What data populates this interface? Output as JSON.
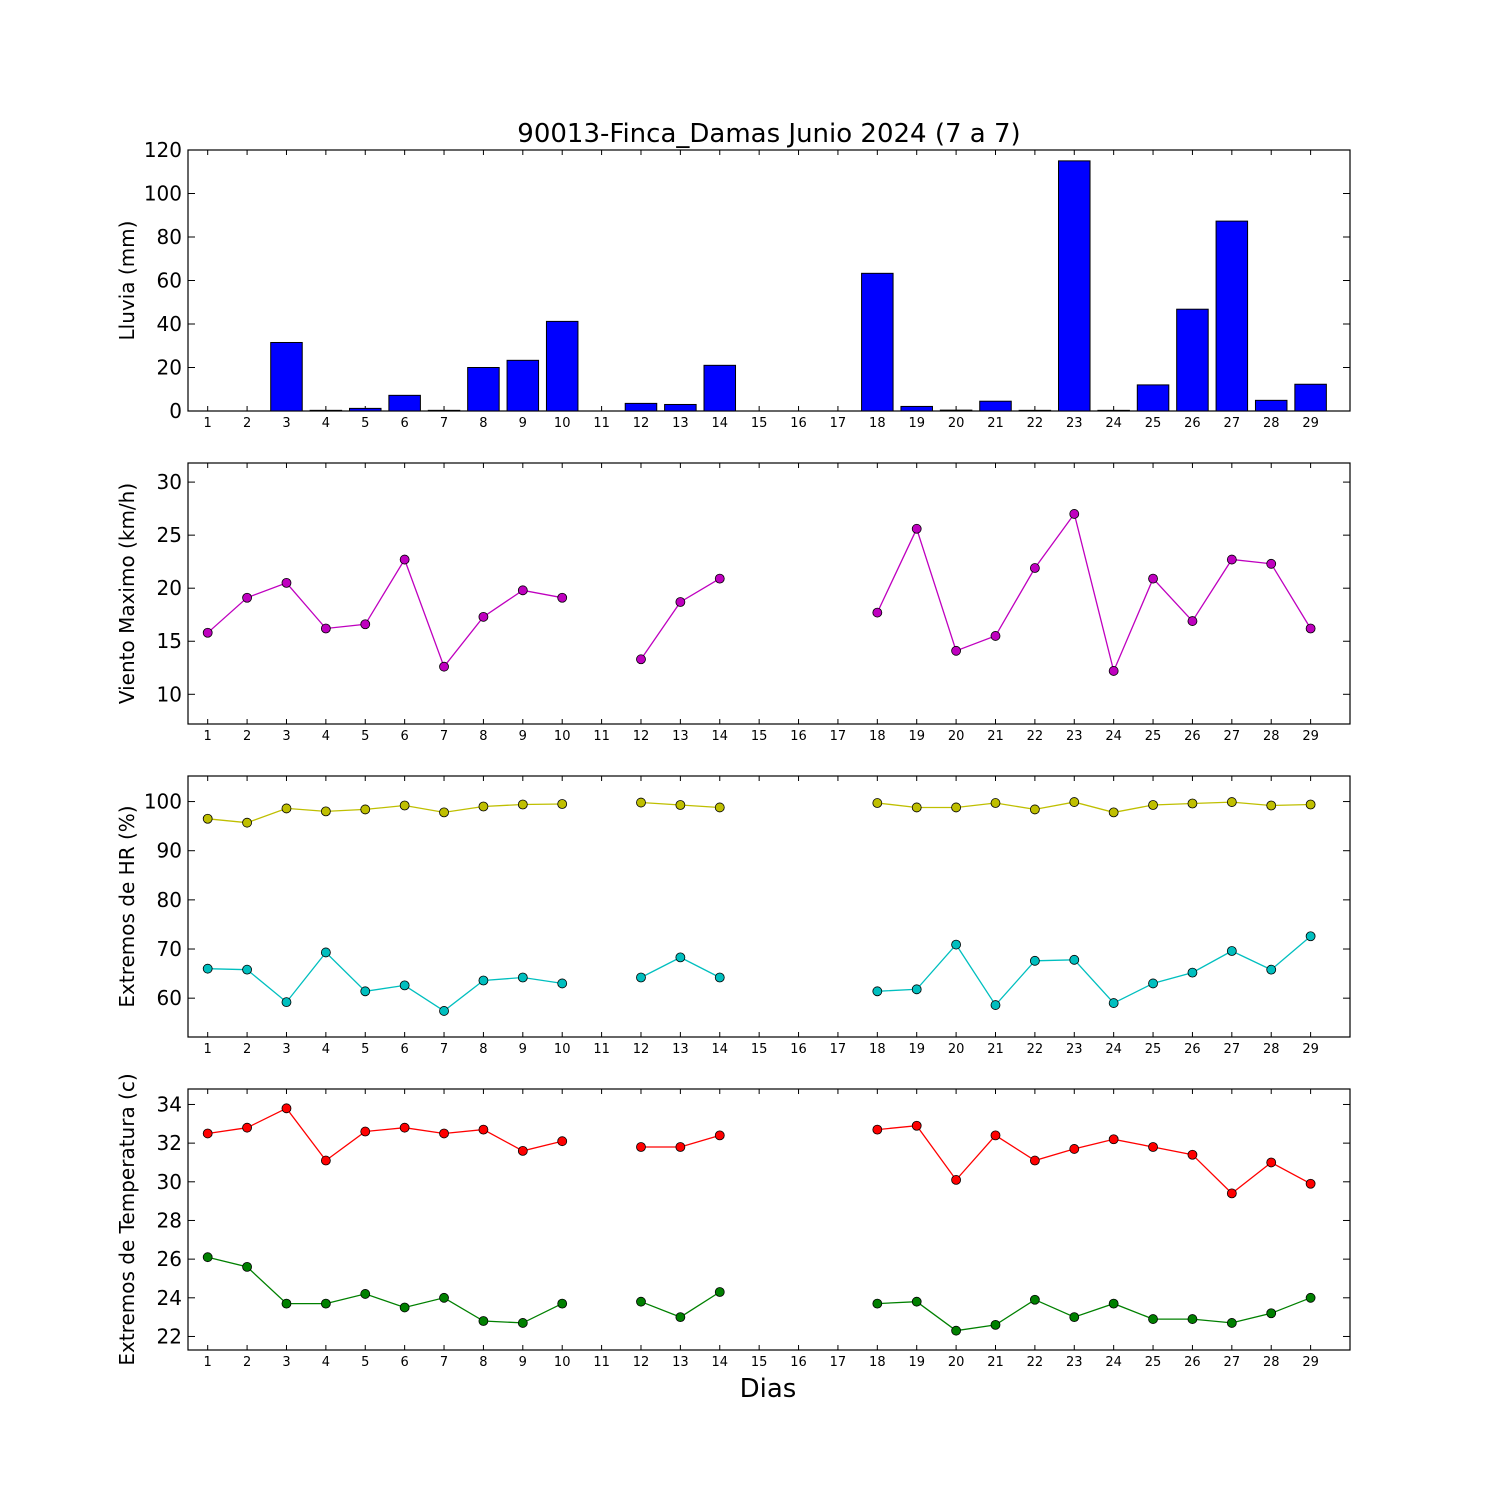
{
  "title": "90013-Finca_Damas Junio 2024  (7 a 7)",
  "xlabel": "Dias",
  "days": [
    1,
    2,
    3,
    4,
    5,
    6,
    7,
    8,
    9,
    10,
    11,
    12,
    13,
    14,
    15,
    16,
    17,
    18,
    19,
    20,
    21,
    22,
    23,
    24,
    25,
    26,
    27,
    28,
    29
  ],
  "colors": {
    "rain": "#0000ff",
    "wind": "#bf00bf",
    "hr_max": "#bfbf00",
    "hr_min": "#00bfbf",
    "t_max": "#ff0000",
    "t_min": "#008000"
  },
  "chart_data": [
    {
      "type": "bar",
      "ylabel": "Lluvia (mm)",
      "ylim": [
        0,
        120
      ],
      "yticks": [
        0,
        20,
        40,
        60,
        80,
        100,
        120
      ],
      "series": [
        {
          "values": [
            0,
            0,
            31.5,
            0.3,
            1.2,
            7.2,
            0.3,
            20,
            23.3,
            41.2,
            null,
            3.5,
            3.0,
            21,
            0,
            0,
            0,
            63.3,
            2.1,
            0.4,
            4.5,
            0.3,
            115,
            0.3,
            12,
            46.8,
            87.3,
            4.9,
            12.3
          ],
          "color": "#0000ff"
        }
      ]
    },
    {
      "type": "line",
      "ylabel": "Viento Maximo (km/h)",
      "ylim": [
        7.2,
        31.8
      ],
      "yticks": [
        10,
        15,
        20,
        25,
        30
      ],
      "series": [
        {
          "values": [
            15.8,
            19.1,
            20.5,
            16.2,
            16.6,
            22.7,
            12.6,
            17.3,
            19.8,
            19.1,
            null,
            13.3,
            18.7,
            20.9,
            null,
            null,
            null,
            17.7,
            25.6,
            14.1,
            15.5,
            21.9,
            27,
            12.2,
            20.9,
            16.9,
            22.7,
            22.3,
            16.2
          ],
          "color": "#bf00bf"
        }
      ]
    },
    {
      "type": "line",
      "ylabel": "Extremos de HR (%)",
      "ylim": [
        52.1,
        105.2
      ],
      "yticks": [
        60,
        70,
        80,
        90,
        100
      ],
      "series": [
        {
          "values": [
            96.5,
            95.7,
            98.6,
            98.0,
            98.4,
            99.2,
            97.8,
            99.0,
            99.4,
            99.5,
            null,
            99.8,
            99.3,
            98.8,
            null,
            null,
            null,
            99.7,
            98.8,
            98.8,
            99.7,
            98.4,
            99.9,
            97.8,
            99.3,
            99.6,
            99.9,
            99.2,
            99.4
          ],
          "color": "#bfbf00"
        },
        {
          "values": [
            66.0,
            65.8,
            59.2,
            69.3,
            61.4,
            62.6,
            57.4,
            63.6,
            64.2,
            63.0,
            null,
            64.2,
            68.3,
            64.2,
            null,
            null,
            null,
            61.4,
            61.8,
            70.9,
            58.6,
            67.6,
            67.8,
            59.0,
            63.0,
            65.2,
            69.6,
            65.8,
            72.6
          ],
          "color": "#00bfbf"
        }
      ]
    },
    {
      "type": "line",
      "ylabel": "Extremos de Temperatura (c)",
      "ylim": [
        21.3,
        34.8
      ],
      "yticks": [
        22,
        24,
        26,
        28,
        30,
        32,
        34
      ],
      "series": [
        {
          "values": [
            32.5,
            32.8,
            33.8,
            31.1,
            32.6,
            32.8,
            32.5,
            32.7,
            31.6,
            32.1,
            null,
            31.8,
            31.8,
            32.4,
            null,
            null,
            null,
            32.7,
            32.9,
            30.1,
            32.4,
            31.1,
            31.7,
            32.2,
            31.8,
            31.4,
            29.4,
            31.0,
            29.9
          ],
          "color": "#ff0000"
        },
        {
          "values": [
            26.1,
            25.6,
            23.7,
            23.7,
            24.2,
            23.5,
            24.0,
            22.8,
            22.7,
            23.7,
            null,
            23.8,
            23.0,
            24.3,
            null,
            null,
            null,
            23.7,
            23.8,
            22.3,
            22.6,
            23.9,
            23.0,
            23.7,
            22.9,
            22.9,
            22.7,
            23.2,
            24.0
          ],
          "color": "#008000"
        }
      ]
    }
  ]
}
